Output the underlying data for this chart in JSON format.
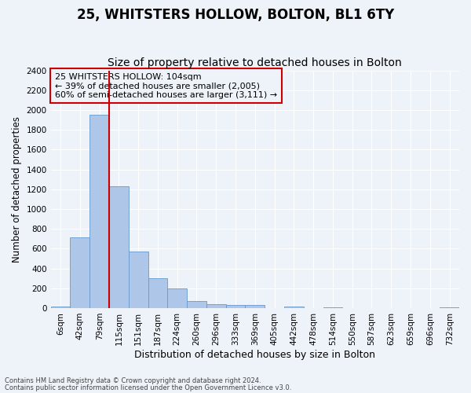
{
  "title1": "25, WHITSTERS HOLLOW, BOLTON, BL1 6TY",
  "title2": "Size of property relative to detached houses in Bolton",
  "xlabel": "Distribution of detached houses by size in Bolton",
  "ylabel": "Number of detached properties",
  "bin_labels": [
    "6sqm",
    "42sqm",
    "79sqm",
    "115sqm",
    "151sqm",
    "187sqm",
    "224sqm",
    "260sqm",
    "296sqm",
    "333sqm",
    "369sqm",
    "405sqm",
    "442sqm",
    "478sqm",
    "514sqm",
    "550sqm",
    "587sqm",
    "623sqm",
    "659sqm",
    "696sqm",
    "732sqm"
  ],
  "bar_values": [
    15,
    710,
    1950,
    1230,
    575,
    305,
    200,
    75,
    40,
    30,
    30,
    0,
    15,
    0,
    10,
    0,
    0,
    0,
    0,
    0,
    10
  ],
  "bar_color": "#aec6e8",
  "bar_edgecolor": "#6699cc",
  "vline_color": "#cc0000",
  "vline_x": 2.5,
  "annotation_text": "25 WHITSTERS HOLLOW: 104sqm\n← 39% of detached houses are smaller (2,005)\n60% of semi-detached houses are larger (3,111) →",
  "annotation_box_edgecolor": "#cc0000",
  "ylim": [
    0,
    2400
  ],
  "yticks": [
    0,
    200,
    400,
    600,
    800,
    1000,
    1200,
    1400,
    1600,
    1800,
    2000,
    2200,
    2400
  ],
  "footnote1": "Contains HM Land Registry data © Crown copyright and database right 2024.",
  "footnote2": "Contains public sector information licensed under the Open Government Licence v3.0.",
  "bg_color": "#eef2f9",
  "grid_color": "#ffffff",
  "title1_fontsize": 12,
  "title2_fontsize": 10,
  "xlabel_fontsize": 9,
  "ylabel_fontsize": 8.5,
  "tick_fontsize": 7.5,
  "annot_fontsize": 8,
  "footnote_fontsize": 6
}
